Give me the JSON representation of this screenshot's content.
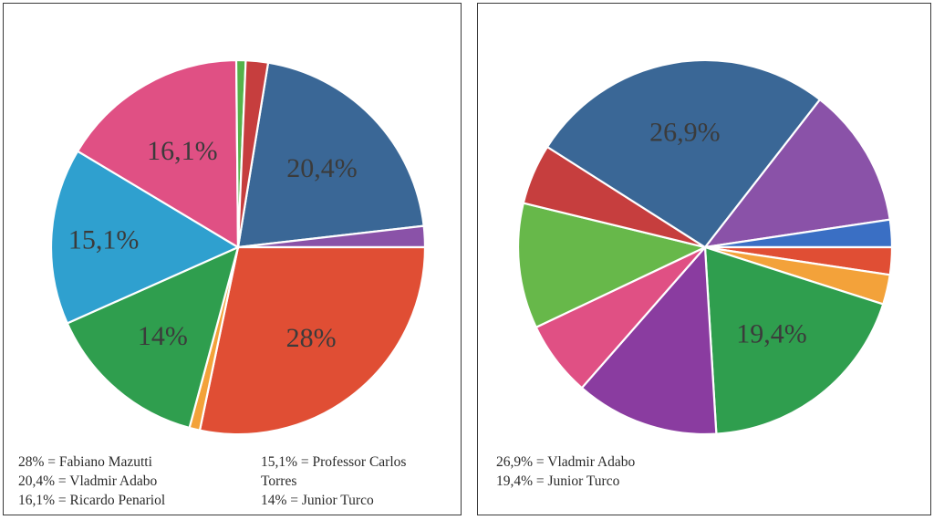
{
  "chart_data": [
    {
      "type": "pie",
      "slices": [
        {
          "value": 20.4,
          "color": "#3a6796",
          "label": "20,4%"
        },
        {
          "value": 1.8,
          "color": "#8a52a8"
        },
        {
          "value": 28.0,
          "color": "#e04e34",
          "label": "28%"
        },
        {
          "value": 0.9,
          "color": "#f3a23a"
        },
        {
          "value": 14.0,
          "color": "#2f9e4e",
          "label": "14%"
        },
        {
          "value": 15.1,
          "color": "#2fa0cf",
          "label": "15,1%"
        },
        {
          "value": 16.1,
          "color": "#e05084",
          "label": "16,1%"
        },
        {
          "value": 0.8,
          "color": "#55b24a"
        },
        {
          "value": 1.9,
          "color": "#c63e3e"
        }
      ],
      "legend": {
        "col1": [
          "28% = Fabiano Mazutti",
          "20,4% = Vladmir Adabo",
          "16,1% = Ricardo Penariol"
        ],
        "col2": [
          "15,1% = Professor Carlos",
          "Torres",
          "14% = Junior Turco"
        ]
      }
    },
    {
      "type": "pie",
      "slices": [
        {
          "value": 12.3,
          "color": "#8a52a8"
        },
        {
          "value": 2.4,
          "color": "#3a6fc4"
        },
        {
          "value": 2.4,
          "color": "#e04e34"
        },
        {
          "value": 2.6,
          "color": "#f3a23a"
        },
        {
          "value": 19.4,
          "color": "#2f9e4e",
          "label": "19,4%"
        },
        {
          "value": 12.6,
          "color": "#8a3ca0"
        },
        {
          "value": 6.6,
          "color": "#e05084"
        },
        {
          "value": 11.0,
          "color": "#67b84a"
        },
        {
          "value": 5.3,
          "color": "#c63e3e"
        },
        {
          "value": 26.9,
          "color": "#3a6796",
          "label": "26,9%"
        }
      ],
      "legend": {
        "col1": [
          "26,9% = Vladmir Adabo",
          "19,4% = Junior Turco"
        ]
      }
    }
  ]
}
